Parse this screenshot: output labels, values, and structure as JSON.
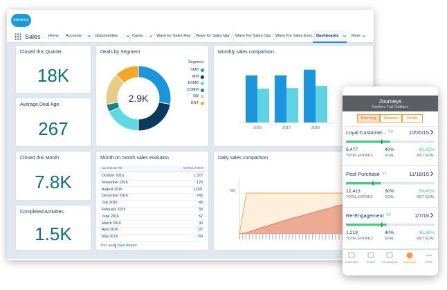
{
  "app": {
    "logo": "salesforce",
    "name": "Sales"
  },
  "nav": [
    "Home",
    "Accounts",
    "Opportunities",
    "Cases",
    "Wave for Sales Rep",
    "Wave for Sales Mgr",
    "Wave For Sales Ops",
    "Wave For Sales Exec",
    "Dashboards",
    "More"
  ],
  "metrics": [
    {
      "title": "Closed this Quarter",
      "value": "18K"
    },
    {
      "title": "Average Deal Age",
      "value": "267"
    },
    {
      "title": "Closed this Month",
      "value": "7.8K"
    },
    {
      "title": "Completed Activities",
      "value": "1.5K"
    }
  ],
  "chart_data": [
    {
      "type": "pie",
      "title": "Deals by Segment",
      "center_label": "2.9K",
      "legend_title": "Segment",
      "categories": [
        "SMB",
        "MM",
        "ESMB",
        "COMM",
        "GB",
        "ENT"
      ],
      "values": [
        28,
        22,
        18,
        4,
        16,
        12
      ],
      "colors": [
        "#1b96dc",
        "#0b3a5e",
        "#5fd9e0",
        "#12858f",
        "#e6cd86",
        "#f5a623"
      ]
    },
    {
      "type": "bar",
      "title": "Monthly sales comparison",
      "categories": [
        "2016",
        "2017",
        "2018"
      ],
      "series": [
        {
          "color": "#1b96dc",
          "values": [
            82,
            82,
            92
          ]
        },
        {
          "color": "#5ed3e3",
          "values": [
            59,
            60,
            64
          ]
        }
      ],
      "ylim": [
        0,
        100
      ]
    },
    {
      "type": "area",
      "title": "Daily sales comparison",
      "ylim": [
        0,
        6500000
      ],
      "yticks": [
        {
          "value": 5000000,
          "label": "5M"
        }
      ],
      "series": [
        {
          "color": "#e2735a",
          "values": [
            0,
            150000,
            400000,
            700000,
            950000,
            1200000,
            1450000,
            1700000,
            1950000,
            2150000,
            2400000,
            2600000,
            2850000,
            3050000,
            3300000,
            3500000,
            3750000,
            3950000,
            4200000,
            4400000
          ]
        },
        {
          "color": "#f2a93b",
          "values": [
            0,
            4850000,
            4850000,
            4850000,
            4850000,
            4850000,
            4850000,
            4850000,
            4850000,
            4850000,
            4850000,
            4850000,
            4850000,
            4850000,
            4850000,
            4850000,
            4850000,
            4850000,
            4850000,
            4850000
          ]
        }
      ]
    }
  ],
  "table": {
    "title": "Month on month sales evolution",
    "columns": [
      "CLOSE DATE",
      "EVOLUTION"
    ],
    "rows": [
      [
        "October 2016",
        "1,372"
      ],
      [
        "November 2016",
        "178"
      ],
      [
        "August 2016",
        "1,021"
      ],
      [
        "December 2016",
        "743"
      ],
      [
        "July 2016",
        "43"
      ],
      [
        "February 2016",
        "39"
      ],
      [
        "June 2016",
        "52"
      ],
      [
        "March 2016",
        "30"
      ],
      [
        "April 2016",
        "-37"
      ],
      [
        "May 2016",
        "-59"
      ]
    ],
    "footer": {
      "period": "This year",
      "link": "View Report"
    }
  },
  "mobile": {
    "title": "Journeys",
    "subtitle": "Northern Trail Outfitters",
    "tabs": [
      "Running",
      "Stopped",
      "Drafts"
    ],
    "stat_labels": [
      "TOTAL ENTRIES",
      "GOAL",
      "MET GOAL"
    ],
    "journeys": [
      {
        "name": "Loyal Customer...",
        "version": "V2",
        "date": "10/20/15",
        "total_entries": "6,477",
        "goal": {
          "value": 40,
          "label": "40%"
        },
        "met_goal": {
          "value": 49.92,
          "label": "49.92%"
        }
      },
      {
        "name": "Post Purchase",
        "version": "V1",
        "date": "11/18/15",
        "total_entries": "12,413",
        "goal": {
          "value": 30,
          "label": "30%"
        },
        "met_goal": {
          "value": 39.46,
          "label": "39.46%"
        }
      },
      {
        "name": "Re-Engagement",
        "version": "V1",
        "date": "1/7/16",
        "total_entries": "1,219",
        "goal": {
          "value": 40,
          "label": "40%"
        },
        "met_goal": {
          "value": 45.86,
          "label": "45.86%"
        }
      }
    ],
    "bottom_nav": [
      "Calendar",
      "Email",
      "Campaigns",
      "Journeys",
      "More"
    ]
  }
}
